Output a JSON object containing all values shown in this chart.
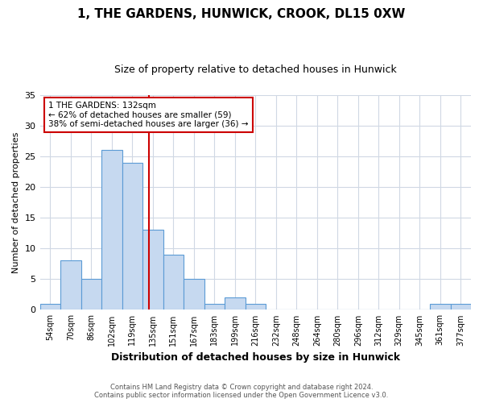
{
  "title": "1, THE GARDENS, HUNWICK, CROOK, DL15 0XW",
  "subtitle": "Size of property relative to detached houses in Hunwick",
  "xlabel": "Distribution of detached houses by size in Hunwick",
  "ylabel": "Number of detached properties",
  "bin_labels": [
    "54sqm",
    "70sqm",
    "86sqm",
    "102sqm",
    "119sqm",
    "135sqm",
    "151sqm",
    "167sqm",
    "183sqm",
    "199sqm",
    "216sqm",
    "232sqm",
    "248sqm",
    "264sqm",
    "280sqm",
    "296sqm",
    "312sqm",
    "329sqm",
    "345sqm",
    "361sqm",
    "377sqm"
  ],
  "bin_values": [
    1,
    8,
    5,
    26,
    24,
    13,
    9,
    5,
    1,
    2,
    1,
    0,
    0,
    0,
    0,
    0,
    0,
    0,
    0,
    1,
    1
  ],
  "bar_color": "#c6d9f0",
  "bar_edge_color": "#5b9bd5",
  "grid_color": "#d0d8e4",
  "annotation_text": "1 THE GARDENS: 132sqm\n← 62% of detached houses are smaller (59)\n38% of semi-detached houses are larger (36) →",
  "annotation_box_color": "#ffffff",
  "annotation_box_edge_color": "#cc0000",
  "property_line_color": "#cc0000",
  "footer_line1": "Contains HM Land Registry data © Crown copyright and database right 2024.",
  "footer_line2": "Contains public sector information licensed under the Open Government Licence v3.0.",
  "ylim": [
    0,
    35
  ],
  "yticks": [
    0,
    5,
    10,
    15,
    20,
    25,
    30,
    35
  ],
  "title_fontsize": 11,
  "subtitle_fontsize": 9,
  "background_color": "#ffffff"
}
